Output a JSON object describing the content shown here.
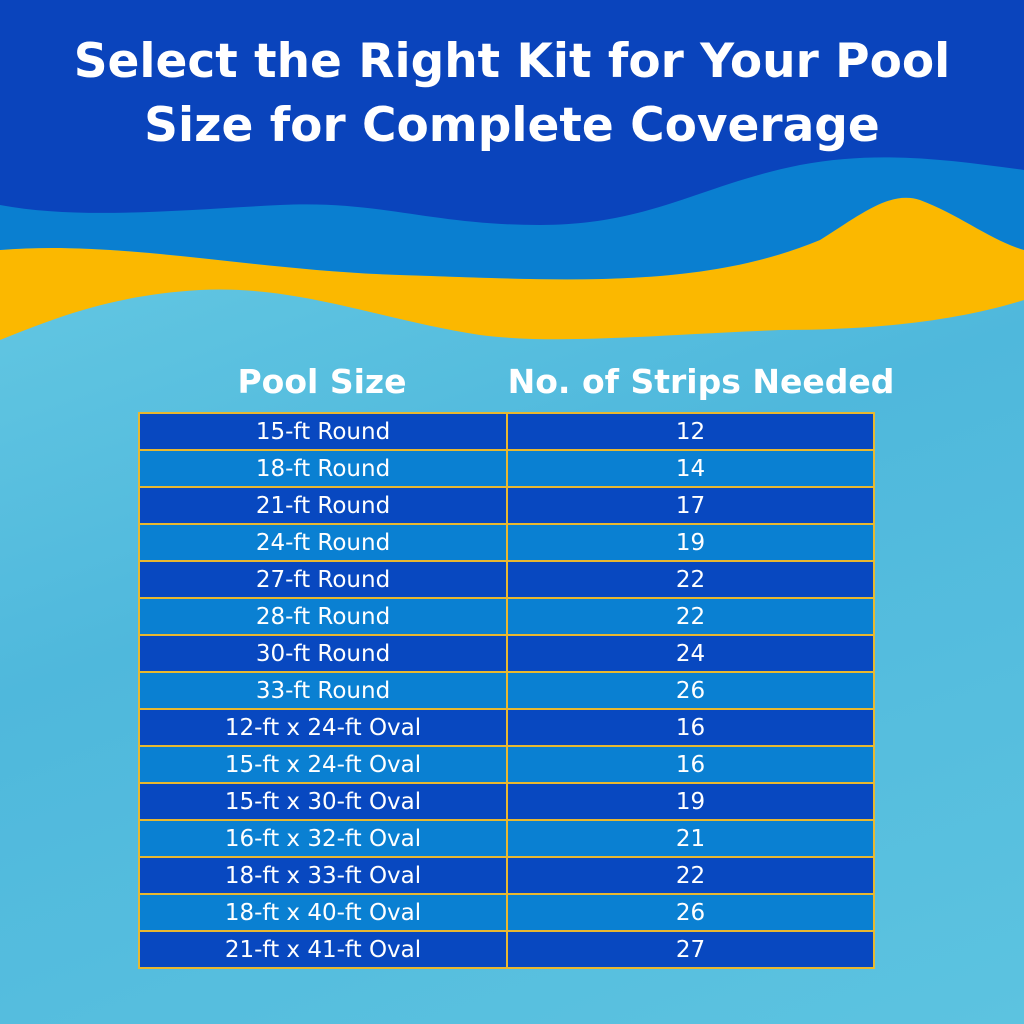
{
  "title_line1": "Select the Right Kit for Your Pool",
  "title_line2": "Size for Complete Coverage",
  "colors": {
    "banner": "#0a44bc",
    "wave_blue": "#0a7fd0",
    "wave_yellow": "#fbb800",
    "row_dark": "#0848c0",
    "row_light": "#0a80d2",
    "border": "#e8b830"
  },
  "table": {
    "headers": [
      "Pool Size",
      "No. of Strips Needed"
    ],
    "rows": [
      [
        "15-ft Round",
        "12"
      ],
      [
        "18-ft Round",
        "14"
      ],
      [
        "21-ft Round",
        "17"
      ],
      [
        "24-ft Round",
        "19"
      ],
      [
        "27-ft Round",
        "22"
      ],
      [
        "28-ft Round",
        "22"
      ],
      [
        "30-ft Round",
        "24"
      ],
      [
        "33-ft Round",
        "26"
      ],
      [
        "12-ft x 24-ft Oval",
        "16"
      ],
      [
        "15-ft x 24-ft Oval",
        "16"
      ],
      [
        "15-ft x 30-ft Oval",
        "19"
      ],
      [
        "16-ft x 32-ft Oval",
        "21"
      ],
      [
        "18-ft x 33-ft Oval",
        "22"
      ],
      [
        "18-ft x 40-ft Oval",
        "26"
      ],
      [
        "21-ft x 41-ft Oval",
        "27"
      ]
    ]
  }
}
